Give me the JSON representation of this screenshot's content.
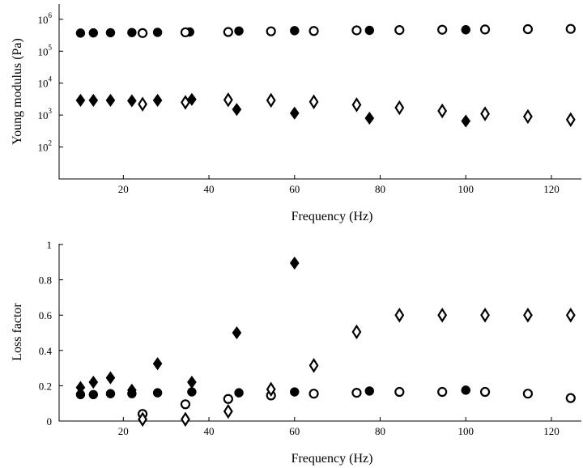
{
  "chart_data": [
    {
      "type": "scatter",
      "xlabel": "Frequency (Hz)",
      "ylabel": "Young modulus (Pa)",
      "yscale": "log",
      "xlim": [
        5,
        127
      ],
      "ylim": [
        10,
        3000000
      ],
      "xticks": [
        20,
        40,
        60,
        80,
        100,
        120
      ],
      "yticks": [
        {
          "value": 100,
          "base": "10",
          "exp": "2"
        },
        {
          "value": 1000,
          "base": "10",
          "exp": "3"
        },
        {
          "value": 10000,
          "base": "10",
          "exp": "4"
        },
        {
          "value": 100000,
          "base": "10",
          "exp": "5"
        },
        {
          "value": 1000000,
          "base": "10",
          "exp": "6"
        }
      ],
      "grid": false,
      "series": [
        {
          "marker": "filled-circle",
          "x": [
            10,
            13,
            17,
            22,
            28,
            35.5,
            47,
            60,
            77.5,
            100
          ],
          "y": [
            370000,
            375000,
            380000,
            385000,
            390000,
            400000,
            430000,
            440000,
            450000,
            470000
          ]
        },
        {
          "marker": "open-circle",
          "x": [
            24.5,
            34.5,
            44.5,
            54.5,
            64.5,
            74.5,
            84.5,
            94.5,
            104.5,
            114.5,
            124.5
          ],
          "y": [
            370000,
            390000,
            400000,
            420000,
            430000,
            450000,
            460000,
            470000,
            480000,
            490000,
            500000
          ]
        },
        {
          "marker": "filled-diamond",
          "x": [
            10,
            13,
            17,
            22,
            28,
            36,
            46.5,
            60,
            77.5,
            100
          ],
          "y": [
            2900,
            2900,
            2900,
            2800,
            2900,
            3100,
            1500,
            1150,
            800,
            650
          ]
        },
        {
          "marker": "open-diamond",
          "x": [
            24.5,
            34.5,
            44.5,
            54.5,
            64.5,
            74.5,
            84.5,
            94.5,
            104.5,
            114.5,
            124.5
          ],
          "y": [
            2200,
            2500,
            3000,
            2900,
            2600,
            2100,
            1700,
            1350,
            1100,
            900,
            720
          ]
        }
      ]
    },
    {
      "type": "scatter",
      "xlabel": "Frequency (Hz)",
      "ylabel": "Loss factor",
      "yscale": "linear",
      "xlim": [
        5,
        127
      ],
      "ylim": [
        0,
        1
      ],
      "xticks": [
        20,
        40,
        60,
        80,
        100,
        120
      ],
      "yticks": [
        {
          "value": 0,
          "label": "0"
        },
        {
          "value": 0.2,
          "label": "0.2"
        },
        {
          "value": 0.4,
          "label": "0.4"
        },
        {
          "value": 0.6,
          "label": "0.6"
        },
        {
          "value": 0.8,
          "label": "0.8"
        },
        {
          "value": 1,
          "label": "1"
        }
      ],
      "grid": false,
      "series": [
        {
          "marker": "filled-circle",
          "x": [
            10,
            13,
            17,
            22,
            28,
            36,
            47,
            60,
            77.5,
            100
          ],
          "y": [
            0.15,
            0.15,
            0.155,
            0.155,
            0.16,
            0.165,
            0.16,
            0.165,
            0.17,
            0.175
          ]
        },
        {
          "marker": "open-circle",
          "x": [
            24.5,
            34.5,
            44.5,
            54.5,
            64.5,
            74.5,
            84.5,
            94.5,
            104.5,
            114.5,
            124.5
          ],
          "y": [
            0.04,
            0.095,
            0.125,
            0.145,
            0.155,
            0.16,
            0.165,
            0.165,
            0.165,
            0.155,
            0.13
          ]
        },
        {
          "marker": "filled-diamond",
          "x": [
            10,
            13,
            17,
            22,
            28,
            36,
            46.5,
            60
          ],
          "y": [
            0.19,
            0.22,
            0.245,
            0.175,
            0.325,
            0.22,
            0.5,
            0.895
          ]
        },
        {
          "marker": "open-diamond",
          "x": [
            24.5,
            34.5,
            44.5,
            54.5,
            64.5,
            74.5,
            84.5,
            94.5,
            104.5,
            114.5,
            124.5
          ],
          "y": [
            0.01,
            0.01,
            0.055,
            0.18,
            0.315,
            0.505,
            0.6,
            0.6,
            0.6,
            0.6,
            0.6
          ]
        }
      ]
    }
  ]
}
